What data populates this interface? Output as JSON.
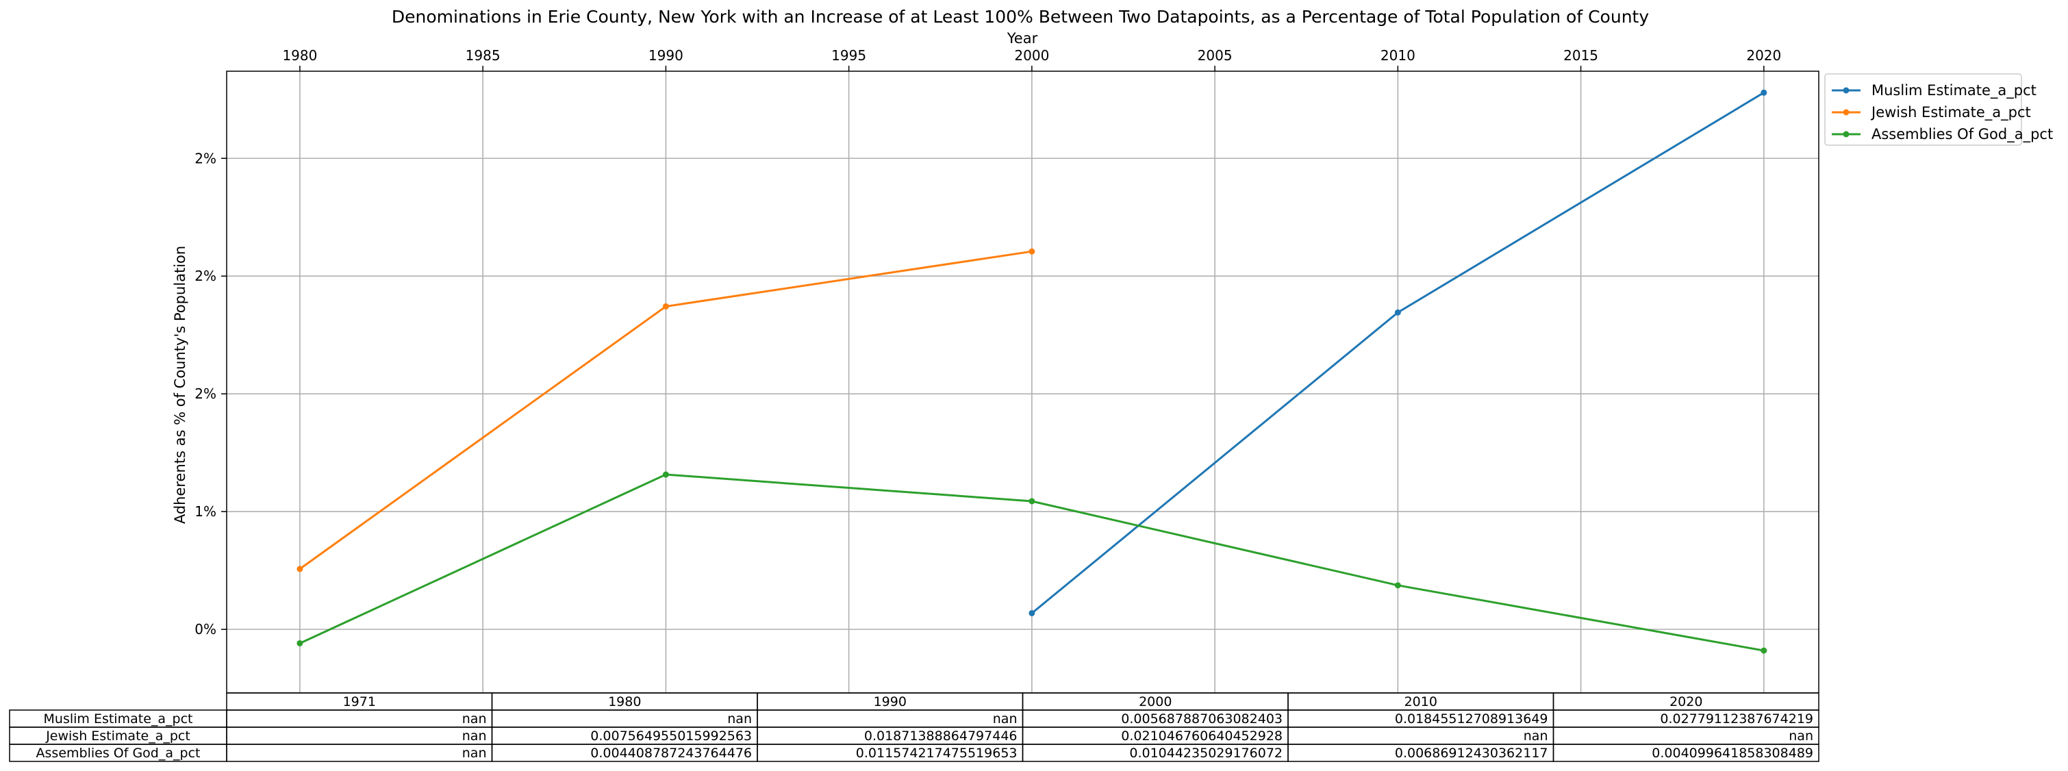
{
  "chart_data": {
    "type": "line",
    "title": "Denominations in Erie County, New York with an Increase of at Least 100% Between Two Datapoints, as a Percentage of Total Population of County",
    "xlabel": "Year",
    "ylabel": "Adherents as % of County's Population",
    "x_ticks": [
      1980,
      1985,
      1990,
      1995,
      2000,
      2005,
      2010,
      2015,
      2020
    ],
    "xlim": [
      1978,
      2021.5
    ],
    "ylim": [
      0.0023,
      0.0287
    ],
    "y_ticks": [
      0.005,
      0.01,
      0.015,
      0.02,
      0.025
    ],
    "y_tick_labels": [
      "0%",
      "1%",
      "2%",
      "2%",
      "2%"
    ],
    "grid": true,
    "legend_position": "outside-top-right",
    "series": [
      {
        "name": "Muslim Estimate_a_pct",
        "color": "#1f77b4",
        "x": [
          2000,
          2010,
          2020
        ],
        "y": [
          0.005687887063082403,
          0.01845512708913649,
          0.02779112387674219
        ]
      },
      {
        "name": "Jewish Estimate_a_pct",
        "color": "#ff7f0e",
        "x": [
          1980,
          1990,
          2000
        ],
        "y": [
          0.007564955015992563,
          0.01871388864797446,
          0.021046760640452928
        ]
      },
      {
        "name": "Assemblies Of God_a_pct",
        "color": "#2ca02c",
        "x": [
          1980,
          1990,
          2000,
          2010,
          2020
        ],
        "y": [
          0.004408787243764476,
          0.011574217475519653,
          0.01044235029176072,
          0.00686912430362117,
          0.004099641858308489
        ]
      }
    ],
    "table": {
      "columns": [
        "1971",
        "1980",
        "1990",
        "2000",
        "2010",
        "2020"
      ],
      "rows": [
        {
          "label": "Muslim Estimate_a_pct",
          "cells": [
            "nan",
            "nan",
            "nan",
            "0.005687887063082403",
            "0.01845512708913649",
            "0.02779112387674219"
          ]
        },
        {
          "label": "Jewish Estimate_a_pct",
          "cells": [
            "nan",
            "0.007564955015992563",
            "0.01871388864797446",
            "0.021046760640452928",
            "nan",
            "nan"
          ]
        },
        {
          "label": "Assemblies Of God_a_pct",
          "cells": [
            "nan",
            "0.004408787243764476",
            "0.011574217475519653",
            "0.01044235029176072",
            "0.00686912430362117",
            "0.004099641858308489"
          ]
        }
      ]
    }
  }
}
